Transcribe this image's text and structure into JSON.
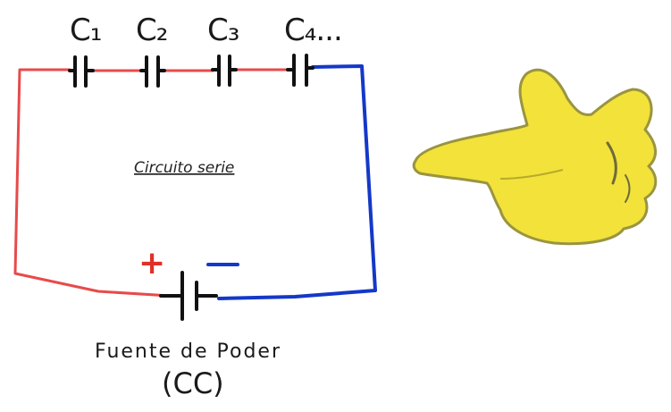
{
  "capacitors": [
    {
      "label": "C₁"
    },
    {
      "label": "C₂"
    },
    {
      "label": "C₃"
    },
    {
      "label": "C₄..."
    }
  ],
  "circuit_label": "Circuito serie",
  "source": {
    "line1": "Fuente de Poder",
    "line2": "(CC)",
    "plus": "+",
    "minus": "−"
  },
  "colors": {
    "positive_wire": "#e84a4a",
    "negative_wire": "#1438c8",
    "component": "#111111",
    "hand_fill": "#f2e23a",
    "hand_outline": "#8a8a3a"
  },
  "icons": [
    "pointing-hand-icon",
    "capacitor-icon",
    "battery-icon"
  ]
}
